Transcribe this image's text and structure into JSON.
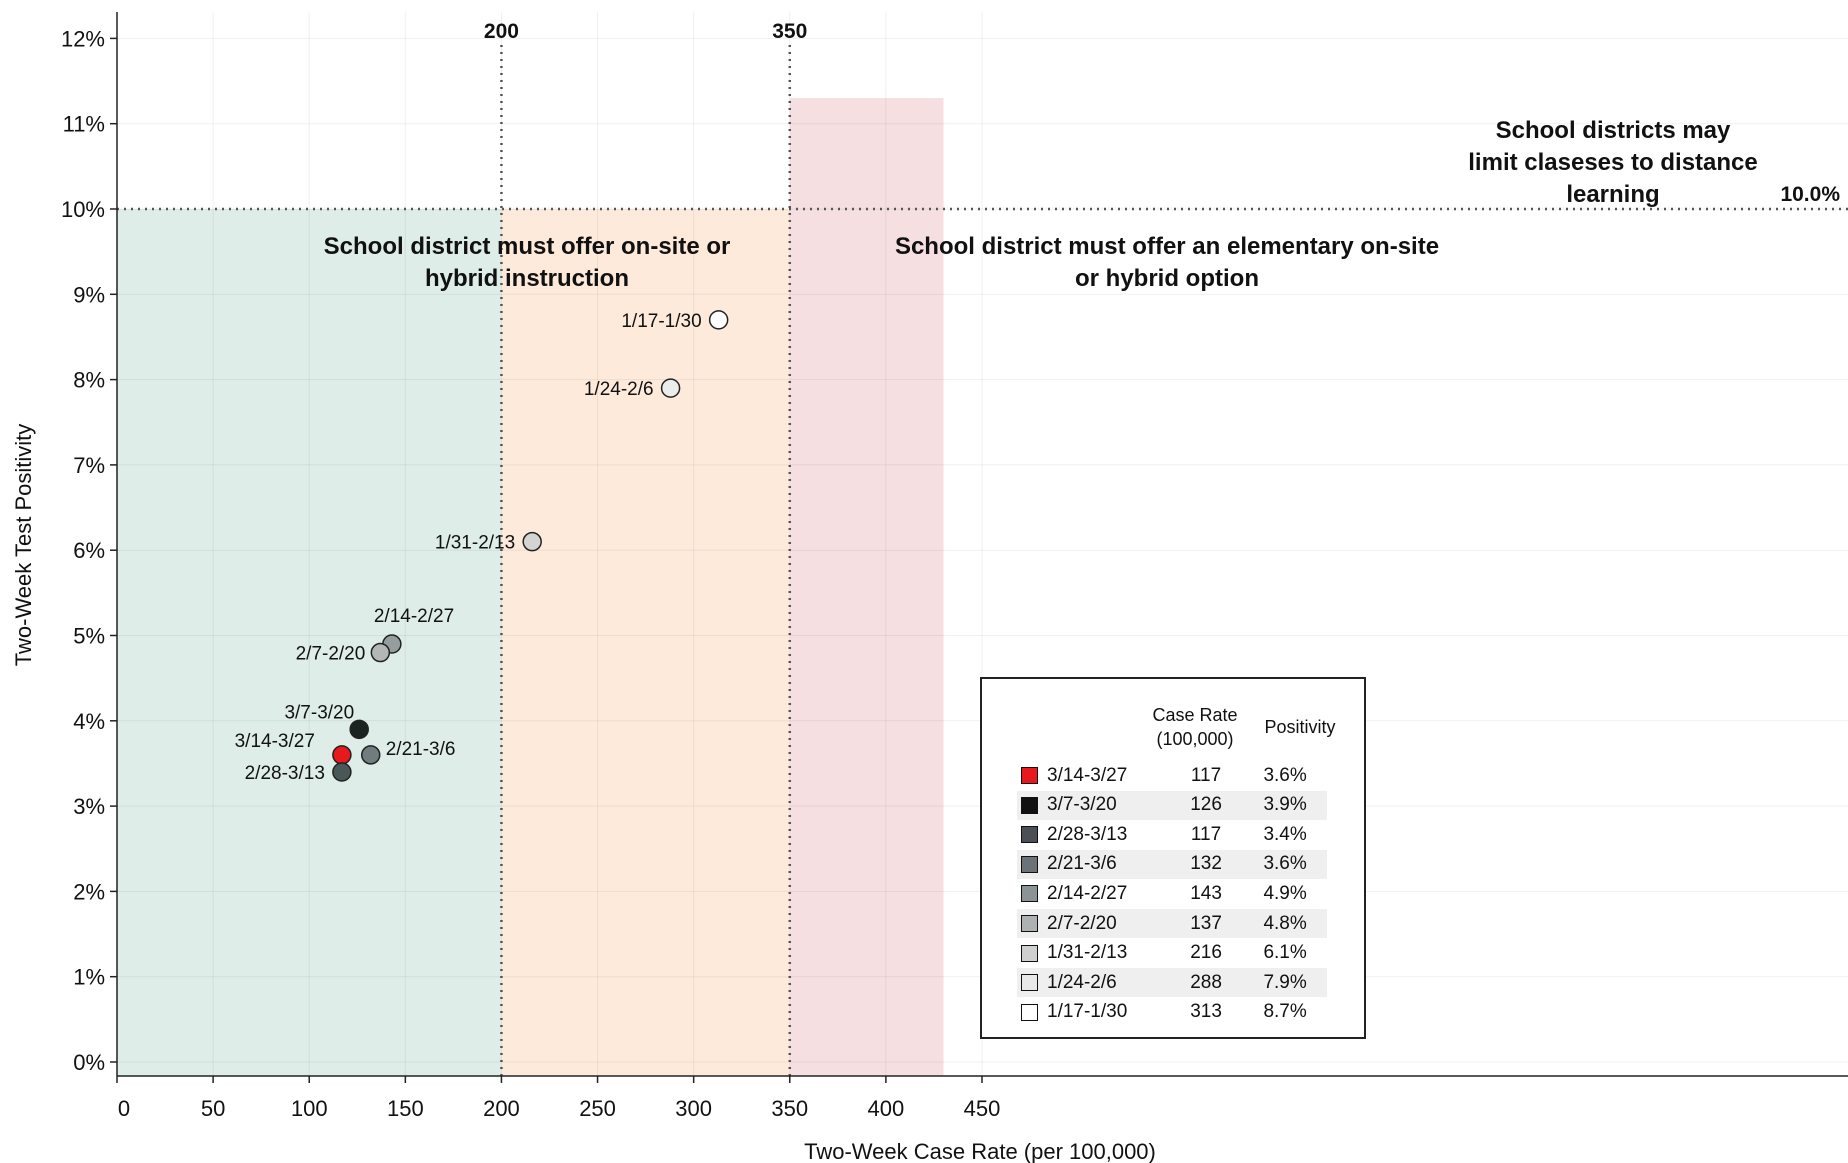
{
  "chart_data": {
    "type": "scatter",
    "xlabel": "Two-Week Case Rate (per 100,000)",
    "ylabel": "Two-Week Test Positivity",
    "xlim": [
      0,
      450
    ],
    "ylim": [
      0,
      12.5
    ],
    "x_ticks": [
      0,
      50,
      100,
      150,
      200,
      250,
      300,
      350,
      400,
      450
    ],
    "x_tick_labels": [
      "0",
      "50",
      "100",
      "150",
      "200",
      "250",
      "300",
      "350",
      "400",
      "450"
    ],
    "y_ticks": [
      0,
      1,
      2,
      3,
      4,
      5,
      6,
      7,
      8,
      9,
      10,
      11,
      12
    ],
    "y_tick_labels": [
      "0%",
      "1%",
      "2%",
      "3%",
      "4%",
      "5%",
      "6%",
      "7%",
      "8%",
      "9%",
      "10%",
      "11%",
      "12%"
    ],
    "grid": true,
    "thresholds": {
      "x": [
        {
          "value": 200,
          "label": "200"
        },
        {
          "value": 350,
          "label": "350"
        }
      ],
      "y": [
        {
          "value": 10,
          "label": "10.0%"
        }
      ]
    },
    "zones": [
      {
        "x_range": [
          0,
          200
        ],
        "y_range": [
          0,
          10
        ],
        "color": "#deede8",
        "label": "School district must offer on-site or hybrid instruction"
      },
      {
        "x_range": [
          200,
          350
        ],
        "y_range": [
          0,
          10
        ],
        "color": "#fdeadb",
        "label": "School district must offer an elementary on-site or hybrid option"
      },
      {
        "x_range": [
          350,
          430
        ],
        "y_range": [
          0,
          11.3
        ],
        "color": "#f6dfe0",
        "label": "School districts may limit claseses to distance learning"
      }
    ],
    "points": [
      {
        "label": "3/14-3/27",
        "x": 117,
        "y": 3.6,
        "color": "#e8191c"
      },
      {
        "label": "3/7-3/20",
        "x": 126,
        "y": 3.9,
        "color": "#1c2422"
      },
      {
        "label": "2/28-3/13",
        "x": 117,
        "y": 3.4,
        "color": "#4a5759"
      },
      {
        "label": "2/21-3/6",
        "x": 132,
        "y": 3.6,
        "color": "#707c7e"
      },
      {
        "label": "2/14-2/27",
        "x": 143,
        "y": 4.9,
        "color": "#959e9d"
      },
      {
        "label": "2/7-2/20",
        "x": 137,
        "y": 4.8,
        "color": "#b3b8b6"
      },
      {
        "label": "1/31-2/13",
        "x": 216,
        "y": 6.1,
        "color": "#d4d4d2"
      },
      {
        "label": "1/24-2/6",
        "x": 288,
        "y": 7.9,
        "color": "#ececea"
      },
      {
        "label": "1/17-1/30",
        "x": 313,
        "y": 8.7,
        "color": "#ffffff"
      }
    ]
  },
  "legend": {
    "header_rate": "Case Rate\n(100,000)",
    "header_positivity": "Positivity",
    "rows": [
      {
        "period": "3/14-3/27",
        "rate": "117",
        "positivity": "3.6%",
        "color": "#e8191c"
      },
      {
        "period": "3/7-3/20",
        "rate": "126",
        "positivity": "3.9%",
        "color": "#111111"
      },
      {
        "period": "2/28-3/13",
        "rate": "117",
        "positivity": "3.4%",
        "color": "#4a5055"
      },
      {
        "period": "2/21-3/6",
        "rate": "132",
        "positivity": "3.6%",
        "color": "#6c7378"
      },
      {
        "period": "2/14-2/27",
        "rate": "143",
        "positivity": "4.9%",
        "color": "#8c9396"
      },
      {
        "period": "2/7-2/20",
        "rate": "137",
        "positivity": "4.8%",
        "color": "#aeb1b2"
      },
      {
        "period": "1/31-2/13",
        "rate": "216",
        "positivity": "6.1%",
        "color": "#cfcfcf"
      },
      {
        "period": "1/24-2/6",
        "rate": "288",
        "positivity": "7.9%",
        "color": "#e8e8e8"
      },
      {
        "period": "1/17-1/30",
        "rate": "313",
        "positivity": "8.7%",
        "color": "#ffffff"
      }
    ]
  }
}
